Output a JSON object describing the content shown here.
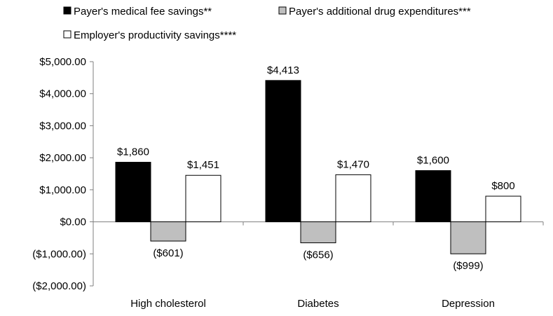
{
  "chart_data": {
    "type": "bar",
    "categories": [
      "High cholesterol",
      "Diabetes",
      "Depression"
    ],
    "series": [
      {
        "name": "Payer's medical fee savings**",
        "values": [
          1860,
          4413,
          1600
        ],
        "labels": [
          "$1,860",
          "$4,413",
          "$1,600"
        ],
        "color": "#000000"
      },
      {
        "name": "Payer's additional drug expenditures***",
        "values": [
          -601,
          -656,
          -999
        ],
        "labels": [
          "($601)",
          "($656)",
          "($999)"
        ],
        "color": "#bfbfbf"
      },
      {
        "name": "Employer's productivity savings****",
        "values": [
          1451,
          1470,
          800
        ],
        "labels": [
          "$1,451",
          "$1,470",
          "$800"
        ],
        "color": "#ffffff"
      }
    ],
    "ylim": [
      -2000,
      5000
    ],
    "yticks": [
      5000,
      4000,
      3000,
      2000,
      1000,
      0,
      -1000,
      -2000
    ],
    "ytick_labels": [
      "$5,000.00",
      "$4,000.00",
      "$3,000.00",
      "$2,000.00",
      "$1,000.00",
      "$0.00",
      "($1,000.00)",
      "($2,000.00)"
    ],
    "title": "",
    "xlabel": "",
    "ylabel": "",
    "grid": false,
    "legend_position": "top-left"
  }
}
